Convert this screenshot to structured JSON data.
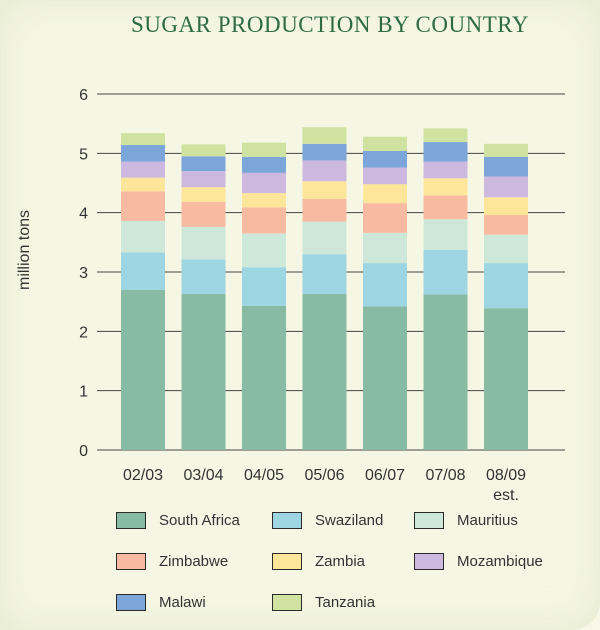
{
  "chart_data": {
    "type": "bar",
    "stacked": true,
    "title": "SUGAR PRODUCTION BY COUNTRY",
    "ylabel": "million tons",
    "xlabel": "",
    "ylim": [
      0,
      6
    ],
    "yticks": [
      "0",
      "1",
      "2",
      "3",
      "4",
      "5",
      "6"
    ],
    "grid": true,
    "categories": [
      "02/03",
      "03/04",
      "04/05",
      "05/06",
      "06/07",
      "07/08",
      "08/09"
    ],
    "category_sublabels": [
      "",
      "",
      "",
      "",
      "",
      "",
      "est."
    ],
    "series": [
      {
        "name": "South Africa",
        "color": "#88bba4",
        "values": [
          2.7,
          2.63,
          2.43,
          2.63,
          2.42,
          2.62,
          2.39
        ]
      },
      {
        "name": "Swaziland",
        "color": "#9dd5e2",
        "values": [
          0.63,
          0.58,
          0.65,
          0.67,
          0.73,
          0.75,
          0.76
        ]
      },
      {
        "name": "Mauritius",
        "color": "#cde8d9",
        "values": [
          0.53,
          0.55,
          0.57,
          0.55,
          0.51,
          0.52,
          0.48
        ]
      },
      {
        "name": "Zimbabwe",
        "color": "#f8bba2",
        "values": [
          0.5,
          0.42,
          0.44,
          0.38,
          0.5,
          0.4,
          0.33
        ]
      },
      {
        "name": "Zambia",
        "color": "#fde59a",
        "values": [
          0.23,
          0.25,
          0.24,
          0.3,
          0.32,
          0.29,
          0.3
        ]
      },
      {
        "name": "Mozambique",
        "color": "#cdb8df",
        "values": [
          0.27,
          0.27,
          0.34,
          0.35,
          0.28,
          0.28,
          0.35
        ]
      },
      {
        "name": "Malawi",
        "color": "#7ca6da",
        "values": [
          0.28,
          0.25,
          0.27,
          0.28,
          0.28,
          0.33,
          0.33
        ]
      },
      {
        "name": "Tanzania",
        "color": "#cfe2a0",
        "values": [
          0.2,
          0.2,
          0.24,
          0.28,
          0.24,
          0.23,
          0.22
        ]
      }
    ],
    "legend_position": "bottom"
  }
}
